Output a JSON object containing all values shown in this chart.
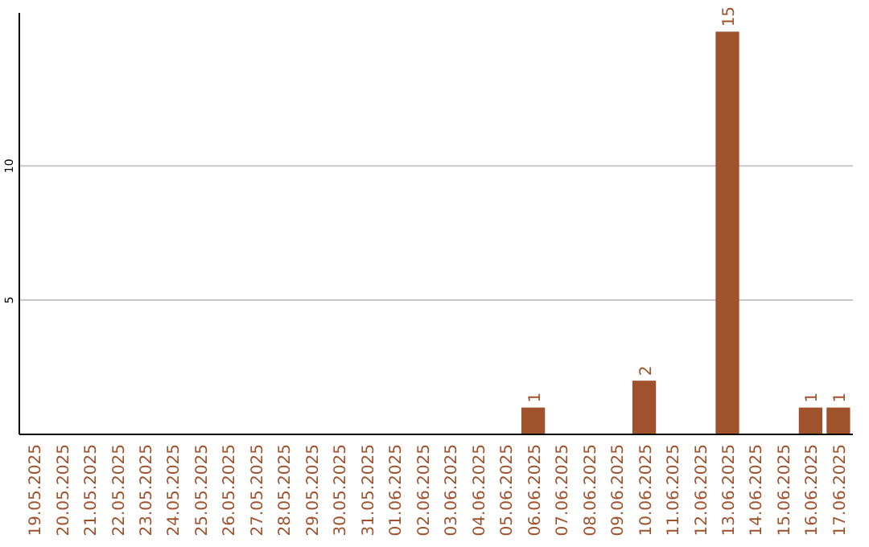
{
  "chart_data": {
    "type": "bar",
    "categories": [
      "19.05.2025",
      "20.05.2025",
      "21.05.2025",
      "22.05.2025",
      "23.05.2025",
      "24.05.2025",
      "25.05.2025",
      "26.05.2025",
      "27.05.2025",
      "28.05.2025",
      "29.05.2025",
      "30.05.2025",
      "31.05.2025",
      "01.06.2025",
      "02.06.2025",
      "03.06.2025",
      "04.06.2025",
      "05.06.2025",
      "06.06.2025",
      "07.06.2025",
      "08.06.2025",
      "09.06.2025",
      "10.06.2025",
      "11.06.2025",
      "12.06.2025",
      "13.06.2025",
      "14.06.2025",
      "15.06.2025",
      "16.06.2025",
      "17.06.2025"
    ],
    "values": [
      0,
      0,
      0,
      0,
      0,
      0,
      0,
      0,
      0,
      0,
      0,
      0,
      0,
      0,
      0,
      0,
      0,
      0,
      1,
      0,
      0,
      0,
      2,
      0,
      0,
      15,
      0,
      0,
      1,
      1
    ],
    "value_labels": [
      null,
      null,
      null,
      null,
      null,
      null,
      null,
      null,
      null,
      null,
      null,
      null,
      null,
      null,
      null,
      null,
      null,
      null,
      "1",
      null,
      null,
      null,
      "2",
      null,
      null,
      "15",
      null,
      null,
      "1",
      "1"
    ],
    "color": "#a0522d",
    "ylim": [
      0,
      15.7
    ],
    "yticks": [
      5,
      10
    ],
    "grid": "y"
  }
}
